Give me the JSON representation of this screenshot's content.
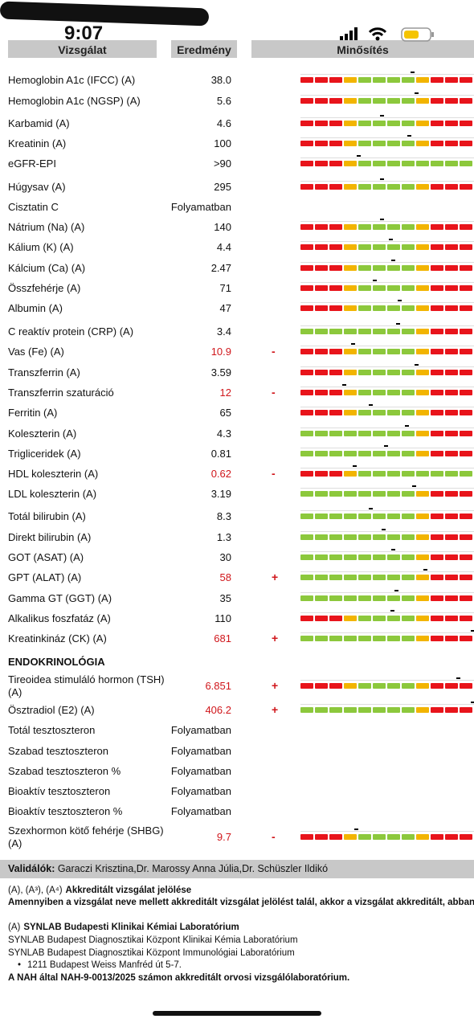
{
  "status_bar": {
    "time": "9:07"
  },
  "header": {
    "columns": [
      "Vizsgálat",
      "Eredmény",
      "Minősítés"
    ]
  },
  "rows": [
    {
      "name": "Hemoglobin A1c (IFCC) (A)",
      "result": "38.0"
    },
    {
      "name": "Hemoglobin A1c (NGSP) (A)",
      "result": "5.6"
    },
    {
      "name": "Karbamid (A)",
      "result": "4.6"
    },
    {
      "name": "Kreatinin (A)",
      "result": "100"
    },
    {
      "name": "eGFR-EPI",
      "result": ">90"
    },
    {
      "name": "Húgysav (A)",
      "result": "295"
    },
    {
      "name": "Cisztatin C",
      "result": "Folyamatban"
    },
    {
      "name": "Nátrium (Na) (A)",
      "result": "140"
    },
    {
      "name": "Kálium (K) (A)",
      "result": "4.4"
    },
    {
      "name": "Kálcium (Ca) (A)",
      "result": "2.47"
    },
    {
      "name": "Összfehérje (A)",
      "result": "71"
    },
    {
      "name": "Albumin (A)",
      "result": "47"
    },
    {
      "name": "C reaktív protein (CRP) (A)",
      "result": "3.4"
    },
    {
      "name": "Vas (Fe) (A)",
      "result": "10.9",
      "flag": "-"
    },
    {
      "name": "Transzferrin (A)",
      "result": "3.59"
    },
    {
      "name": "Transzferrin szaturáció",
      "result": "12",
      "flag": "-"
    },
    {
      "name": "Ferritin (A)",
      "result": "65"
    },
    {
      "name": "Koleszterin (A)",
      "result": "4.3"
    },
    {
      "name": "Trigliceridek (A)",
      "result": "0.81"
    },
    {
      "name": "HDL koleszterin (A)",
      "result": "0.62",
      "flag": "-"
    },
    {
      "name": "LDL koleszterin (A)",
      "result": "3.19"
    },
    {
      "name": "Totál bilirubin (A)",
      "result": "8.3"
    },
    {
      "name": "Direkt bilirubin (A)",
      "result": "1.3"
    },
    {
      "name": "GOT (ASAT) (A)",
      "result": "30"
    },
    {
      "name": "GPT (ALAT) (A)",
      "result": "58",
      "flag": "+"
    },
    {
      "name": "Gamma GT (GGT) (A)",
      "result": "35"
    },
    {
      "name": "Alkalikus foszfatáz (A)",
      "result": "110"
    },
    {
      "name": "Kreatinkináz (CK) (A)",
      "result": "681",
      "flag": "+"
    }
  ],
  "endocrinology": {
    "title": "ENDOKRINOLÓGIA",
    "rows": [
      {
        "name": "Tireoidea stimuláló hormon (TSH) (A)",
        "result": "6.851",
        "flag": "+"
      },
      {
        "name": "Ösztradiol (E2) (A)",
        "result": "406.2",
        "flag": "+"
      },
      {
        "name": "Totál tesztoszteron",
        "result": "Folyamatban"
      },
      {
        "name": "Szabad tesztoszteron",
        "result": "Folyamatban"
      },
      {
        "name": "Szabad tesztoszteron %",
        "result": "Folyamatban"
      },
      {
        "name": "Bioaktív tesztoszteron",
        "result": "Folyamatban"
      },
      {
        "name": "Bioaktív tesztoszteron %",
        "result": "Folyamatban"
      },
      {
        "name": "Szexhormon kötő fehérje (SHBG) (A)",
        "result": "9.7",
        "flag": "-"
      }
    ]
  },
  "footer": {
    "validators": {
      "label": "Validálók:",
      "names": "Garaczi Krisztina,Dr. Marossy Anna Júlia,Dr. Schüszler Ildikó"
    },
    "accreditation": {
      "marks": "(A), (A³), (A⁴)",
      "title": "Akkreditált vizsgálat jelölése",
      "note": "Amennyiben a vizsgálat neve mellett akkreditált vizsgálat jelölést talál, akkor a vizsgálat akkreditált, abban az e"
    },
    "lab": {
      "mark": "(A)",
      "name": "SYNLAB Budapesti Klinikai Kémiai Laboratórium",
      "lines": [
        "SYNLAB Budapest Diagnosztikai Központ Klinikai Kémia Laboratórium",
        "SYNLAB Budapest Diagnosztikai Központ Immunológiai Laboratórium"
      ],
      "address": "1211 Budapest Weiss Manfréd út 5-7.",
      "nah": "A NAH által NAH-9-0013/2025 számon akkreditált orvosi vizsgálólaboratórium."
    }
  }
}
